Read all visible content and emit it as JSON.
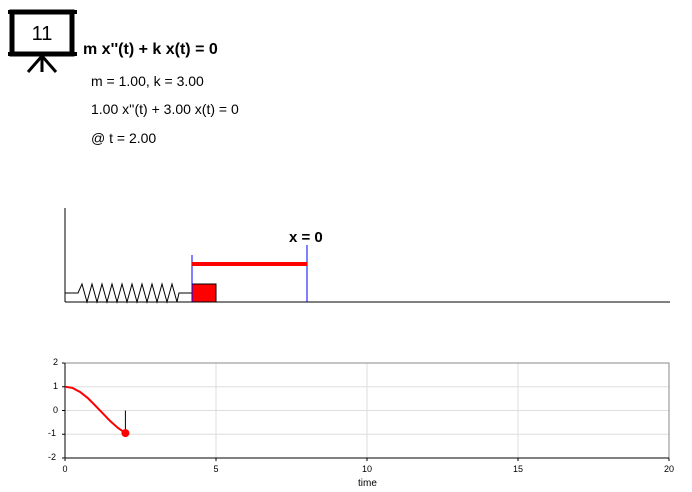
{
  "slide": {
    "number": "11",
    "icon": "projector-screen-icon"
  },
  "equation": {
    "general": "m x''(t) + k x(t) = 0",
    "params": "m = 1.00, k = 3.00",
    "specific": "1.00 x''(t) + 3.00 x(t) = 0",
    "time": "@ t = 2.00"
  },
  "simulation": {
    "equilibrium_label": "x = 0",
    "mass_color": "#ff0000",
    "displacement_color": "#ff0000",
    "equilibrium_color": "#0000ff"
  },
  "chart_data": {
    "type": "line",
    "title": "",
    "xlabel": "time",
    "ylabel": "",
    "xlim": [
      0,
      20
    ],
    "ylim": [
      -2,
      2
    ],
    "x_ticks": [
      "0",
      "5",
      "10",
      "15",
      "20"
    ],
    "y_ticks": [
      "2",
      "1",
      "0",
      "-1",
      "-2"
    ],
    "grid": true,
    "series": [
      {
        "color": "#ff0000",
        "x": [
          0,
          0.25,
          0.5,
          0.75,
          1.0,
          1.25,
          1.5,
          1.75,
          2.0
        ],
        "y": [
          1.0,
          0.95,
          0.78,
          0.53,
          0.21,
          -0.12,
          -0.45,
          -0.73,
          -0.95
        ]
      }
    ],
    "marker": {
      "x": 2.0,
      "y": -0.95,
      "color": "#ff0000"
    }
  }
}
